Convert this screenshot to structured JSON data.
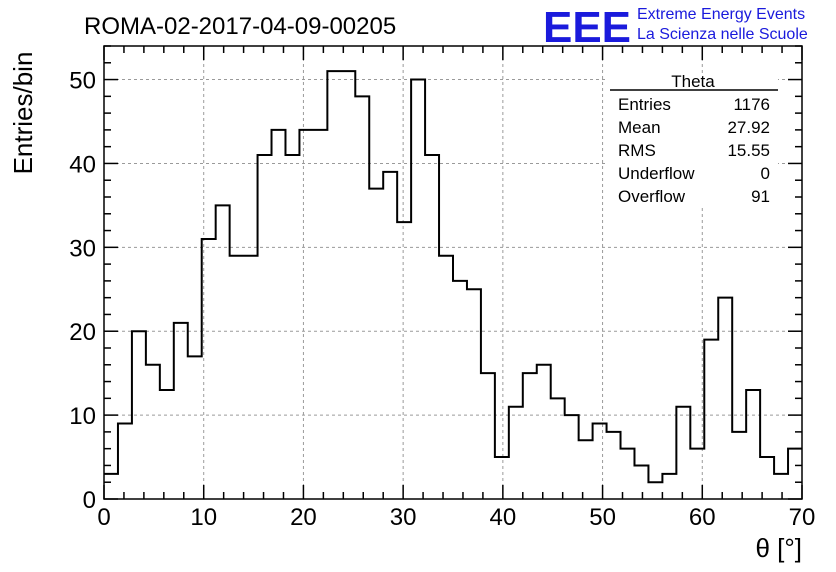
{
  "chart_data": {
    "type": "bar",
    "style": "step-histogram",
    "title": "ROMA-02-2017-04-09-00205",
    "xlabel": "θ [°]",
    "ylabel": "Entries/bin",
    "xlim": [
      0,
      70
    ],
    "ylim": [
      0,
      54
    ],
    "grid": true,
    "grid_style": "dashed",
    "bin_width": 1.4,
    "x_ticks": [
      0,
      10,
      20,
      30,
      40,
      50,
      60,
      70
    ],
    "y_ticks": [
      0,
      10,
      20,
      30,
      40,
      50
    ],
    "values": [
      3,
      9,
      20,
      16,
      13,
      21,
      17,
      31,
      35,
      29,
      29,
      41,
      44,
      41,
      44,
      44,
      51,
      51,
      48,
      37,
      39,
      33,
      50,
      41,
      29,
      26,
      25,
      15,
      5,
      11,
      15,
      16,
      12,
      10,
      7,
      9,
      8,
      6,
      4,
      2,
      3,
      11,
      6,
      19,
      24,
      8,
      13,
      5,
      3,
      6
    ],
    "line_color": "#000000",
    "stats_box": {
      "title": "Theta",
      "placement": "top-right",
      "rows": [
        {
          "label": "Entries",
          "value": "1176"
        },
        {
          "label": "Mean",
          "value": "27.92"
        },
        {
          "label": "RMS",
          "value": "15.55"
        },
        {
          "label": "Underflow",
          "value": "0"
        },
        {
          "label": "Overflow",
          "value": "91"
        }
      ]
    },
    "logo": {
      "text": "EEE",
      "line1": "Extreme Energy Events",
      "line2": "La Scienza nelle Scuole",
      "color": "#1a1adc"
    }
  }
}
